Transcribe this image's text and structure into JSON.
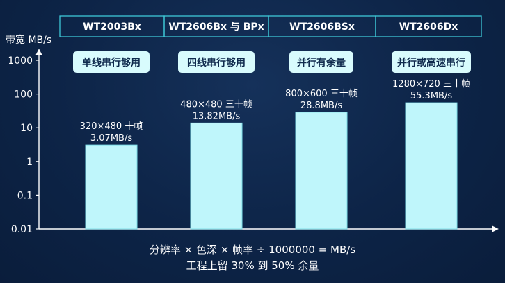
{
  "chart_data": {
    "type": "bar",
    "ylabel": "带宽 MB/s",
    "yscale": "log",
    "ylim": [
      0.01,
      1000
    ],
    "yticks": [
      "1000",
      "100",
      "10",
      "1",
      "0.1",
      "0.01"
    ],
    "categories": [
      "WT2003Bx",
      "WT2606Bx 与 BPx",
      "WT2606BSx",
      "WT2606Dx"
    ],
    "tags": [
      "单线串行够用",
      "四线串行够用",
      "并行有余量",
      "并行或高速串行"
    ],
    "bar_labels_line1": [
      "320×480 十帧",
      "480×480 三十帧",
      "800×600 三十帧",
      "1280×720 三十帧"
    ],
    "bar_labels_line2": [
      "3.07MB/s",
      "13.82MB/s",
      "28.8MB/s",
      "55.3MB/s"
    ],
    "values": [
      3.07,
      13.82,
      28.8,
      55.3
    ],
    "bar_color": "#bff6fb",
    "axis_color": "#ffffff",
    "header_border_color": "#3ec7d6"
  },
  "footer": {
    "formula": "分辨率 × 色深 × 帧率 ÷ 1000000 = MB/s",
    "note": "工程上留 30% 到 50% 余量"
  }
}
